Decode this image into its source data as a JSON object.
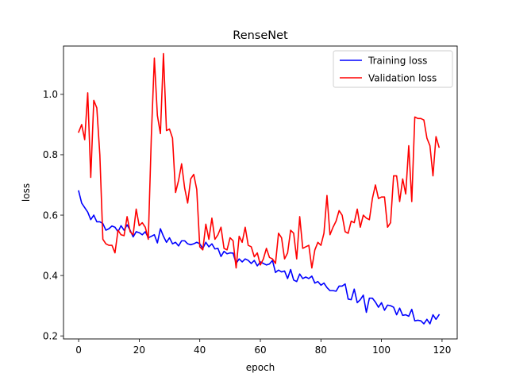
{
  "chart_data": {
    "type": "line",
    "title": "RenseNet",
    "xlabel": "epoch",
    "ylabel": "loss",
    "xlim": [
      -5,
      125
    ],
    "ylim": [
      0.19,
      1.16
    ],
    "xticks": [
      0,
      20,
      40,
      60,
      80,
      100,
      120
    ],
    "yticks": [
      0.2,
      0.4,
      0.6,
      0.8,
      1.0
    ],
    "ytick_labels": [
      "0.2",
      "0.4",
      "0.6",
      "0.8",
      "1.0"
    ],
    "grid": false,
    "legend_position": "upper-right",
    "series": [
      {
        "name": "Training loss",
        "color": "#0000ff",
        "x": [
          0,
          1,
          2,
          3,
          4,
          5,
          6,
          7,
          8,
          9,
          10,
          11,
          12,
          13,
          14,
          15,
          16,
          17,
          18,
          19,
          20,
          21,
          22,
          23,
          24,
          25,
          26,
          27,
          28,
          29,
          30,
          31,
          32,
          33,
          34,
          35,
          36,
          37,
          38,
          39,
          40,
          41,
          42,
          43,
          44,
          45,
          46,
          47,
          48,
          49,
          50,
          51,
          52,
          53,
          54,
          55,
          56,
          57,
          58,
          59,
          60,
          61,
          62,
          63,
          64,
          65,
          66,
          67,
          68,
          69,
          70,
          71,
          72,
          73,
          74,
          75,
          76,
          77,
          78,
          79,
          80,
          81,
          82,
          83,
          84,
          85,
          86,
          87,
          88,
          89,
          90,
          91,
          92,
          93,
          94,
          95,
          96,
          97,
          98,
          99,
          100,
          101,
          102,
          103,
          104,
          105,
          106,
          107,
          108,
          109,
          110,
          111,
          112,
          113,
          114,
          115,
          116,
          117,
          118,
          119
        ],
        "y": [
          0.68,
          0.64,
          0.625,
          0.61,
          0.585,
          0.6,
          0.578,
          0.578,
          0.572,
          0.55,
          0.555,
          0.564,
          0.56,
          0.545,
          0.565,
          0.55,
          0.568,
          0.55,
          0.528,
          0.545,
          0.542,
          0.535,
          0.545,
          0.525,
          0.53,
          0.535,
          0.508,
          0.555,
          0.53,
          0.51,
          0.525,
          0.505,
          0.51,
          0.498,
          0.515,
          0.515,
          0.505,
          0.502,
          0.505,
          0.51,
          0.505,
          0.49,
          0.51,
          0.495,
          0.505,
          0.488,
          0.49,
          0.463,
          0.48,
          0.472,
          0.475,
          0.474,
          0.44,
          0.455,
          0.445,
          0.455,
          0.45,
          0.44,
          0.45,
          0.432,
          0.445,
          0.44,
          0.435,
          0.438,
          0.45,
          0.41,
          0.418,
          0.412,
          0.415,
          0.39,
          0.42,
          0.385,
          0.38,
          0.405,
          0.39,
          0.395,
          0.39,
          0.398,
          0.375,
          0.38,
          0.368,
          0.375,
          0.36,
          0.35,
          0.35,
          0.348,
          0.365,
          0.365,
          0.372,
          0.322,
          0.32,
          0.355,
          0.31,
          0.32,
          0.335,
          0.278,
          0.325,
          0.325,
          0.312,
          0.295,
          0.31,
          0.285,
          0.302,
          0.3,
          0.295,
          0.27,
          0.292,
          0.268,
          0.27,
          0.265,
          0.288,
          0.25,
          0.252,
          0.25,
          0.24,
          0.255,
          0.24,
          0.27,
          0.255,
          0.27
        ]
      },
      {
        "name": "Validation loss",
        "color": "#ff0000",
        "x": [
          0,
          1,
          2,
          3,
          4,
          5,
          6,
          7,
          8,
          9,
          10,
          11,
          12,
          13,
          14,
          15,
          16,
          17,
          18,
          19,
          20,
          21,
          22,
          23,
          24,
          25,
          26,
          27,
          28,
          29,
          30,
          31,
          32,
          33,
          34,
          35,
          36,
          37,
          38,
          39,
          40,
          41,
          42,
          43,
          44,
          45,
          46,
          47,
          48,
          49,
          50,
          51,
          52,
          53,
          54,
          55,
          56,
          57,
          58,
          59,
          60,
          61,
          62,
          63,
          64,
          65,
          66,
          67,
          68,
          69,
          70,
          71,
          72,
          73,
          74,
          75,
          76,
          77,
          78,
          79,
          80,
          81,
          82,
          83,
          84,
          85,
          86,
          87,
          88,
          89,
          90,
          91,
          92,
          93,
          94,
          95,
          96,
          97,
          98,
          99,
          100,
          101,
          102,
          103,
          104,
          105,
          106,
          107,
          108,
          109,
          110,
          111,
          112,
          113,
          114,
          115,
          116,
          117,
          118,
          119
        ],
        "y": [
          0.875,
          0.9,
          0.85,
          1.005,
          0.725,
          0.98,
          0.955,
          0.8,
          0.52,
          0.505,
          0.5,
          0.5,
          0.475,
          0.55,
          0.535,
          0.532,
          0.595,
          0.545,
          0.535,
          0.62,
          0.565,
          0.575,
          0.56,
          0.52,
          0.86,
          1.12,
          0.93,
          0.87,
          1.135,
          0.88,
          0.885,
          0.855,
          0.675,
          0.715,
          0.77,
          0.69,
          0.64,
          0.72,
          0.735,
          0.685,
          0.495,
          0.485,
          0.57,
          0.52,
          0.59,
          0.52,
          0.535,
          0.56,
          0.49,
          0.485,
          0.525,
          0.515,
          0.425,
          0.53,
          0.51,
          0.56,
          0.5,
          0.495,
          0.462,
          0.475,
          0.435,
          0.455,
          0.49,
          0.46,
          0.455,
          0.44,
          0.54,
          0.525,
          0.455,
          0.475,
          0.55,
          0.54,
          0.455,
          0.595,
          0.49,
          0.495,
          0.5,
          0.425,
          0.485,
          0.51,
          0.5,
          0.54,
          0.665,
          0.535,
          0.56,
          0.58,
          0.615,
          0.6,
          0.545,
          0.54,
          0.58,
          0.575,
          0.62,
          0.56,
          0.6,
          0.59,
          0.585,
          0.655,
          0.7,
          0.655,
          0.66,
          0.66,
          0.56,
          0.575,
          0.73,
          0.73,
          0.645,
          0.72,
          0.67,
          0.83,
          0.645,
          0.925,
          0.92,
          0.92,
          0.915,
          0.855,
          0.83,
          0.73,
          0.86,
          0.825
        ]
      }
    ]
  }
}
